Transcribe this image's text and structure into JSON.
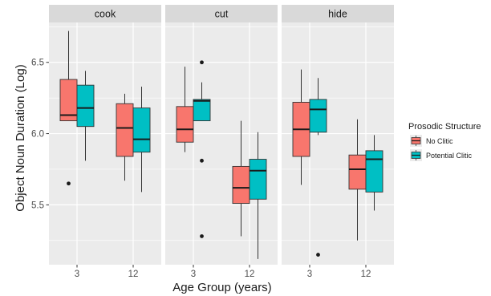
{
  "chart_data": {
    "type": "boxplot",
    "facets": [
      "cook",
      "cut",
      "hide"
    ],
    "categories": [
      "3",
      "12"
    ],
    "xlabel": "Age Group (years)",
    "ylabel": "Object Noun Duration (Log)",
    "ylim": [
      5.08,
      6.78
    ],
    "yticks": [
      "5.5",
      "6.0",
      "6.5"
    ],
    "ytick_values": [
      5.5,
      6.0,
      6.5
    ],
    "legend": {
      "title": "Prosodic Structure",
      "position": "right",
      "items": [
        {
          "name": "No Clitic",
          "color": "#F8766D"
        },
        {
          "name": "Potential Clitic",
          "color": "#00BFC4"
        }
      ]
    },
    "series": [
      {
        "name": "No Clitic",
        "color": "#F8766D",
        "boxes": {
          "cook": [
            {
              "category": "3",
              "min": 6.09,
              "q1": 6.09,
              "median": 6.13,
              "q3": 6.38,
              "max": 6.72,
              "outliers": [
                5.65
              ]
            },
            {
              "category": "12",
              "min": 5.67,
              "q1": 5.84,
              "median": 6.04,
              "q3": 6.21,
              "max": 6.28,
              "outliers": []
            }
          ],
          "cut": [
            {
              "category": "3",
              "min": 5.87,
              "q1": 5.94,
              "median": 6.03,
              "q3": 6.19,
              "max": 6.47,
              "outliers": []
            },
            {
              "category": "12",
              "min": 5.28,
              "q1": 5.51,
              "median": 5.62,
              "q3": 5.77,
              "max": 6.09,
              "outliers": []
            }
          ],
          "hide": [
            {
              "category": "3",
              "min": 5.64,
              "q1": 5.84,
              "median": 6.03,
              "q3": 6.22,
              "max": 6.45,
              "outliers": []
            },
            {
              "category": "12",
              "min": 5.25,
              "q1": 5.61,
              "median": 5.75,
              "q3": 5.85,
              "max": 6.1,
              "outliers": []
            }
          ]
        }
      },
      {
        "name": "Potential Clitic",
        "color": "#00BFC4",
        "boxes": {
          "cook": [
            {
              "category": "3",
              "min": 5.81,
              "q1": 6.05,
              "median": 6.18,
              "q3": 6.34,
              "max": 6.44,
              "outliers": []
            },
            {
              "category": "12",
              "min": 5.59,
              "q1": 5.87,
              "median": 5.96,
              "q3": 6.18,
              "max": 6.33,
              "outliers": []
            }
          ],
          "cut": [
            {
              "category": "3",
              "min": 6.09,
              "q1": 6.09,
              "median": 6.23,
              "q3": 6.24,
              "max": 6.36,
              "outliers": [
                6.5,
                5.81,
                5.28
              ]
            },
            {
              "category": "12",
              "min": 5.12,
              "q1": 5.54,
              "median": 5.74,
              "q3": 5.82,
              "max": 6.01,
              "outliers": []
            }
          ],
          "hide": [
            {
              "category": "3",
              "min": 5.99,
              "q1": 6.01,
              "median": 6.17,
              "q3": 6.24,
              "max": 6.39,
              "outliers": [
                5.15
              ]
            },
            {
              "category": "12",
              "min": 5.46,
              "q1": 5.59,
              "median": 5.82,
              "q3": 5.88,
              "max": 5.99,
              "outliers": []
            }
          ]
        }
      }
    ]
  }
}
